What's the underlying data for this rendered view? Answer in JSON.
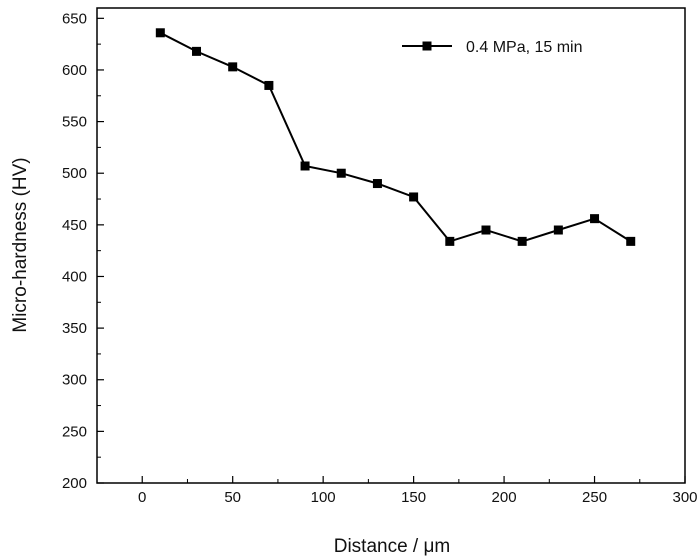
{
  "chart_data": {
    "type": "line",
    "title": "",
    "xlabel": "Distance / μm",
    "ylabel": "Micro-hardness (HV)",
    "xlim": [
      -25,
      300
    ],
    "ylim": [
      200,
      660
    ],
    "x_ticks": [
      0,
      50,
      100,
      150,
      200,
      250,
      300
    ],
    "y_ticks": [
      200,
      250,
      300,
      350,
      400,
      450,
      500,
      550,
      600,
      650
    ],
    "grid": false,
    "legend_position": "top-right",
    "series": [
      {
        "name": "0.4 MPa, 15 min",
        "marker": "square",
        "color": "#000000",
        "x": [
          10,
          30,
          50,
          70,
          90,
          110,
          130,
          150,
          170,
          190,
          210,
          230,
          250,
          270
        ],
        "y": [
          636,
          618,
          603,
          585,
          507,
          500,
          490,
          477,
          434,
          445,
          434,
          445,
          456,
          434
        ]
      }
    ]
  }
}
